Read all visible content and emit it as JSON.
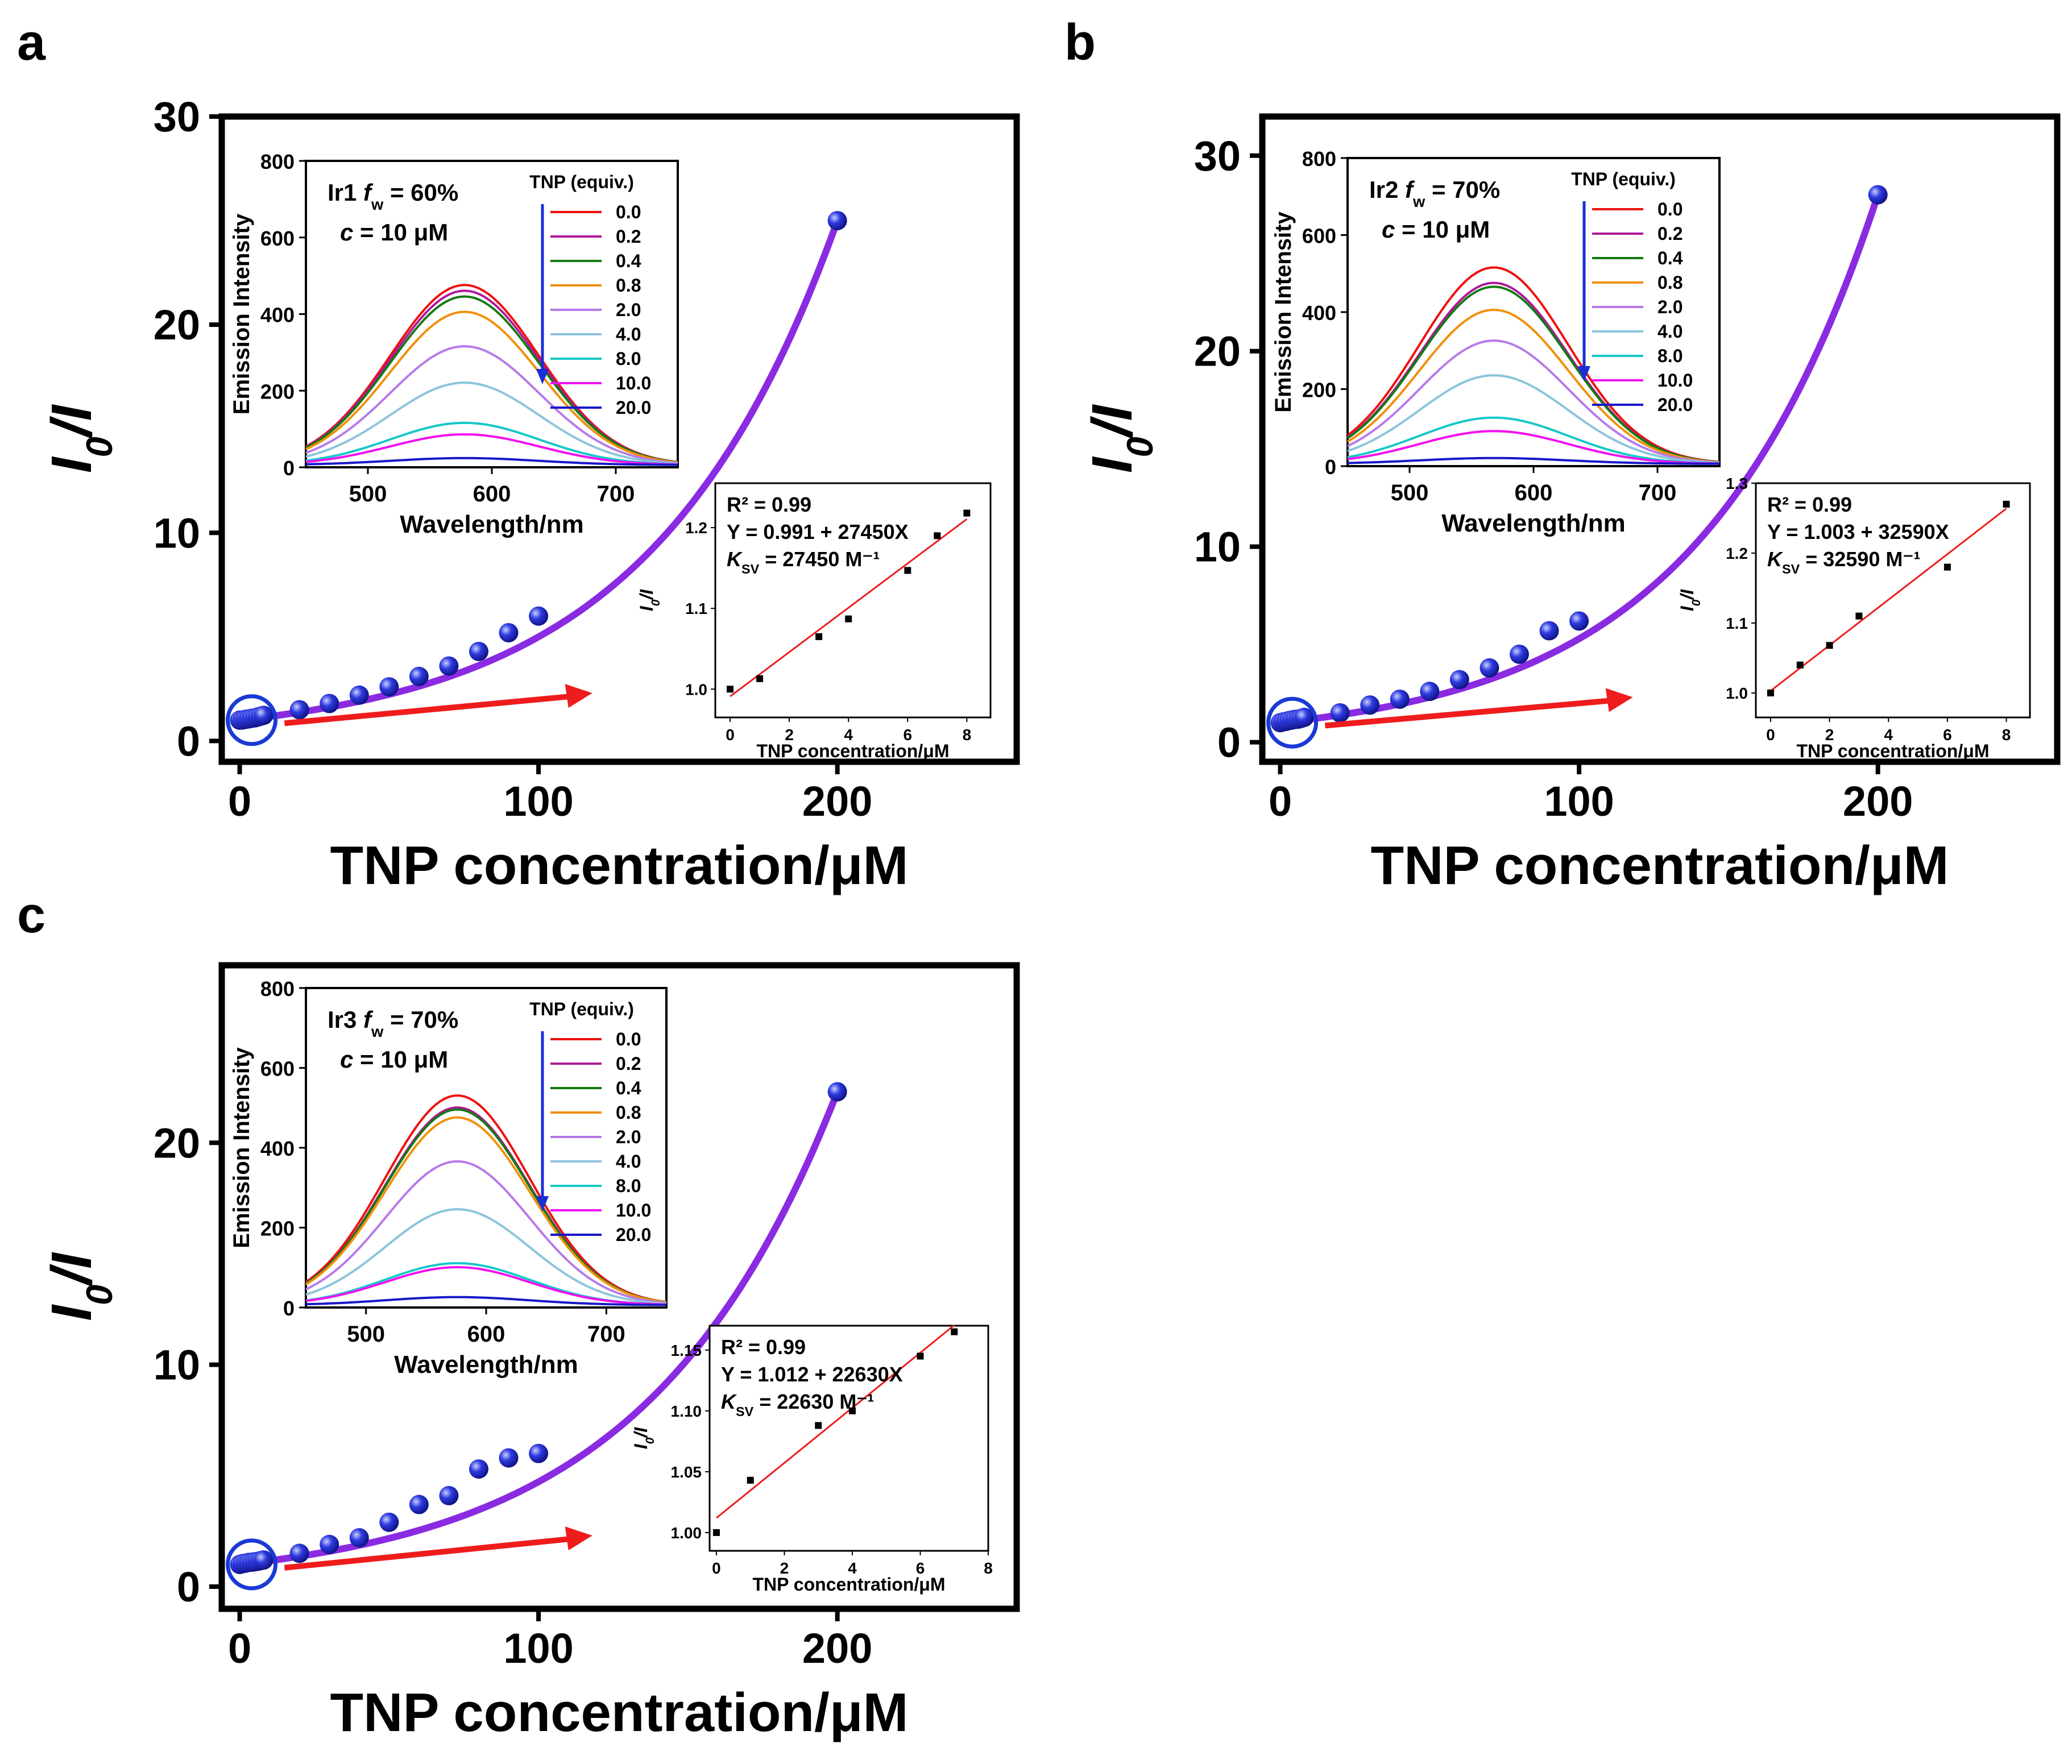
{
  "figure": {
    "panel_count": 3
  },
  "colors": {
    "main_curve": "#8a2be2",
    "main_points": "#2f3be0",
    "circle": "#1a3ad6",
    "arrow": "#ee1c1c",
    "fit_line": "#ee1c1c",
    "spectra": [
      "#ee1111",
      "#b0189a",
      "#127a12",
      "#f0900a",
      "#b77ae8",
      "#8cc4dc",
      "#16c8c8",
      "#f011f0",
      "#1818c8"
    ]
  },
  "chart_data": [
    {
      "panel": "a",
      "type": "scatter",
      "title": "",
      "xlabel": "TNP concentration/μM",
      "ylabel": "I0/I",
      "ylabel_main": "I",
      "ylabel_sub": "0",
      "ylabel_tail": "/I",
      "xlim": [
        -6,
        260
      ],
      "ylim": [
        -1,
        30
      ],
      "xticks": [
        0,
        100,
        200
      ],
      "yticks": [
        0,
        10,
        20,
        30
      ],
      "series": [
        {
          "name": "data",
          "x": [
            0,
            1,
            2,
            3,
            4,
            5,
            6,
            7,
            8,
            20,
            30,
            40,
            50,
            60,
            70,
            80,
            90,
            100,
            200
          ],
          "y": [
            1.0,
            1.01,
            1.04,
            1.06,
            1.09,
            1.11,
            1.15,
            1.19,
            1.23,
            1.5,
            1.8,
            2.2,
            2.6,
            3.1,
            3.6,
            4.3,
            5.2,
            6.0,
            25.0
          ]
        },
        {
          "name": "fit",
          "curve_end": 25.0
        }
      ],
      "inset_spectra": {
        "xlabel": "Wavelength/nm",
        "ylabel": "Emission Intensity",
        "xlim": [
          450,
          750
        ],
        "ylim": [
          0,
          800
        ],
        "xticks": [
          500,
          600,
          700
        ],
        "yticks": [
          0,
          200,
          400,
          600,
          800
        ],
        "complex_label": "Ir1",
        "fw_value": "= 60%",
        "conc_label": "= 10 μM",
        "legend_title": "TNP (equiv.)",
        "legend_entries": [
          "0.0",
          "0.2",
          "0.4",
          "0.8",
          "2.0",
          "4.0",
          "8.0",
          "10.0",
          "20.0"
        ],
        "peak_nm": 578,
        "peak_values": [
          470,
          455,
          440,
          400,
          310,
          215,
          110,
          80,
          18
        ]
      },
      "inset_fit": {
        "xlabel": "TNP concentration/μM",
        "ylabel": "I0/I",
        "xlim": [
          -0.5,
          8.8
        ],
        "ylim": [
          0.965,
          1.255
        ],
        "xticks": [
          0,
          2,
          4,
          6,
          8
        ],
        "yticks": [
          1.0,
          1.1,
          1.2
        ],
        "tick_labels": [
          "1.0",
          "1.1",
          "1.2"
        ],
        "x": [
          0,
          1,
          3,
          4,
          6,
          7,
          8
        ],
        "y": [
          1.0,
          1.013,
          1.065,
          1.087,
          1.147,
          1.19,
          1.218
        ],
        "intercept": 0.991,
        "slope": 0.02745,
        "r2_label": "R² = 0.99",
        "equation": "Y = 0.991 + 27450X",
        "ksv_value": "= 27450 M⁻¹"
      }
    },
    {
      "panel": "b",
      "type": "scatter",
      "title": "",
      "xlabel": "TNP concentration/μM",
      "ylabel": "I0/I",
      "ylabel_main": "I",
      "ylabel_sub": "0",
      "ylabel_tail": "/I",
      "xlim": [
        -6,
        260
      ],
      "ylim": [
        -1,
        32
      ],
      "xticks": [
        0,
        100,
        200
      ],
      "yticks": [
        0,
        10,
        20,
        30
      ],
      "series": [
        {
          "name": "data",
          "x": [
            0,
            1,
            2,
            3,
            4,
            5,
            6,
            7,
            8,
            20,
            30,
            40,
            50,
            60,
            70,
            80,
            90,
            100,
            200
          ],
          "y": [
            1.0,
            1.04,
            1.07,
            1.11,
            1.14,
            1.17,
            1.18,
            1.22,
            1.27,
            1.5,
            1.9,
            2.2,
            2.6,
            3.2,
            3.8,
            4.5,
            5.7,
            6.2,
            28.0
          ]
        },
        {
          "name": "fit",
          "curve_end": 28.0
        }
      ],
      "inset_spectra": {
        "xlabel": "Wavelength/nm",
        "ylabel": "Emission Intensity",
        "xlim": [
          450,
          750
        ],
        "ylim": [
          0,
          800
        ],
        "xticks": [
          500,
          600,
          700
        ],
        "yticks": [
          0,
          200,
          400,
          600,
          800
        ],
        "complex_label": "Ir2",
        "fw_value": "= 70%",
        "conc_label": "= 10 μM",
        "legend_title": "TNP (equiv.)",
        "legend_entries": [
          "0.0",
          "0.2",
          "0.4",
          "0.8",
          "2.0",
          "4.0",
          "8.0",
          "10.0",
          "20.0"
        ],
        "peak_nm": 568,
        "peak_values": [
          510,
          470,
          460,
          400,
          320,
          230,
          120,
          85,
          15
        ]
      },
      "inset_fit": {
        "xlabel": "TNP concentration/μM",
        "ylabel": "I0/I",
        "xlim": [
          -0.5,
          8.8
        ],
        "ylim": [
          0.965,
          1.3
        ],
        "xticks": [
          0,
          2,
          4,
          6,
          8
        ],
        "yticks": [
          1.0,
          1.1,
          1.2,
          1.3
        ],
        "tick_labels": [
          "1.0",
          "1.1",
          "1.2",
          "1.3"
        ],
        "x": [
          0,
          1,
          2,
          3,
          6,
          8
        ],
        "y": [
          1.0,
          1.04,
          1.068,
          1.11,
          1.18,
          1.27
        ],
        "intercept": 1.003,
        "slope": 0.03259,
        "r2_label": "R² = 0.99",
        "equation": "Y = 1.003 + 32590X",
        "ksv_value": "= 32590 M⁻¹"
      }
    },
    {
      "panel": "c",
      "type": "scatter",
      "title": "",
      "xlabel": "TNP concentration/μM",
      "ylabel": "I0/I",
      "ylabel_main": "I",
      "ylabel_sub": "0",
      "ylabel_tail": "/I",
      "xlim": [
        -6,
        260
      ],
      "ylim": [
        -1,
        28
      ],
      "xticks": [
        0,
        100,
        200
      ],
      "yticks": [
        0,
        10,
        20
      ],
      "series": [
        {
          "name": "data",
          "x": [
            0,
            1,
            2,
            3,
            4,
            5,
            6,
            7,
            8,
            20,
            30,
            40,
            50,
            60,
            70,
            80,
            90,
            100,
            200
          ],
          "y": [
            1.0,
            1.04,
            1.06,
            1.09,
            1.1,
            1.12,
            1.14,
            1.17,
            1.2,
            1.5,
            1.9,
            2.2,
            2.9,
            3.7,
            4.1,
            5.3,
            5.8,
            6.0,
            22.3
          ]
        },
        {
          "name": "fit",
          "curve_end": 22.3
        }
      ],
      "inset_spectra": {
        "xlabel": "Wavelength/nm",
        "ylabel": "Emission Intensity",
        "xlim": [
          450,
          750
        ],
        "ylim": [
          0,
          800
        ],
        "xticks": [
          500,
          600,
          700
        ],
        "yticks": [
          0,
          200,
          400,
          600,
          800
        ],
        "complex_label": "Ir3",
        "fw_value": "= 70%",
        "conc_label": "= 10 μM",
        "legend_title": "TNP (equiv.)",
        "legend_entries": [
          "0.0",
          "0.2",
          "0.4",
          "0.8",
          "2.0",
          "4.0",
          "8.0",
          "10.0",
          "20.0"
        ],
        "peak_nm": 576,
        "peak_values": [
          525,
          495,
          490,
          470,
          360,
          240,
          105,
          95,
          20
        ]
      },
      "inset_fit": {
        "xlabel": "TNP concentration/μM",
        "ylabel": "I0/I",
        "xlim": [
          -0.2,
          8.0
        ],
        "ylim": [
          0.985,
          1.17
        ],
        "xticks": [
          0,
          2,
          4,
          6,
          8
        ],
        "yticks": [
          1.0,
          1.05,
          1.1,
          1.15
        ],
        "tick_labels": [
          "1.00",
          "1.05",
          "1.10",
          "1.15"
        ],
        "x": [
          0,
          1,
          3,
          4,
          6,
          7
        ],
        "y": [
          1.0,
          1.043,
          1.088,
          1.1,
          1.145,
          1.165
        ],
        "intercept": 1.012,
        "slope": 0.02263,
        "r2_label": "R² = 0.99",
        "equation": "Y = 1.012 + 22630X",
        "ksv_value": "= 22630 M⁻¹"
      }
    }
  ]
}
